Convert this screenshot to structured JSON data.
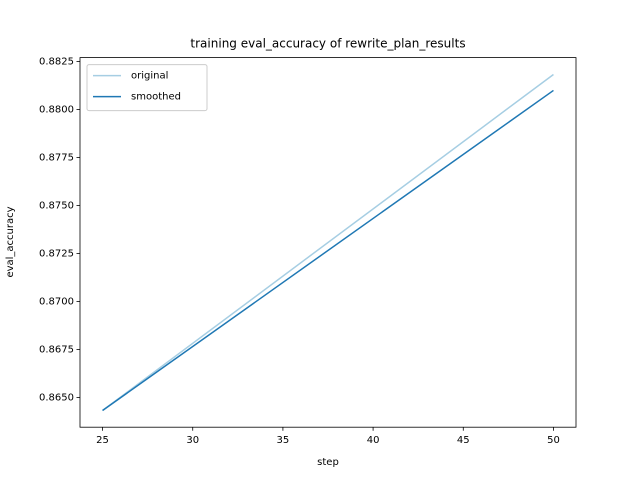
{
  "chart_data": {
    "type": "line",
    "title": "training eval_accuracy of rewrite_plan_results",
    "x_label": "step",
    "y_label": "eval_accuracy",
    "x": [
      25,
      50
    ],
    "series": [
      {
        "name": "original",
        "color": "#a6cee3",
        "values": [
          0.86432,
          0.88182
        ]
      },
      {
        "name": "smoothed",
        "color": "#1f78b4",
        "values": [
          0.86432,
          0.88099
        ]
      }
    ],
    "xlim": [
      23.75,
      51.25
    ],
    "xticks": [
      25,
      30,
      35,
      40,
      45,
      50
    ],
    "ylim": [
      0.86345,
      0.8827
    ],
    "yticks": [
      {
        "value": 0.865,
        "label": "0.8650"
      },
      {
        "value": 0.8675,
        "label": "0.8675"
      },
      {
        "value": 0.87,
        "label": "0.8700"
      },
      {
        "value": 0.8725,
        "label": "0.8725"
      },
      {
        "value": 0.875,
        "label": "0.8750"
      },
      {
        "value": 0.8775,
        "label": "0.8775"
      },
      {
        "value": 0.88,
        "label": "0.8800"
      },
      {
        "value": 0.8825,
        "label": "0.8825"
      }
    ],
    "legend": "upper left"
  }
}
